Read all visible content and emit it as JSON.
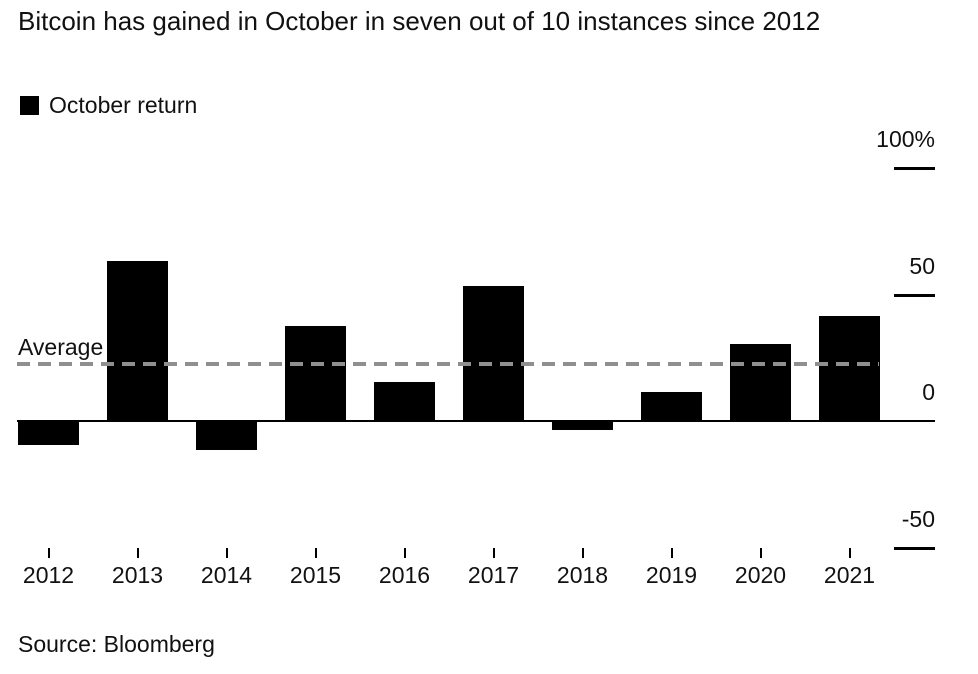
{
  "title": "Bitcoin has gained in October in seven out of 10 instances since 2012",
  "legend": {
    "label": "October return",
    "swatch_color": "#000000"
  },
  "annotations": {
    "average_label": "Average"
  },
  "footer": {
    "source": "Source: Bloomberg"
  },
  "colors": {
    "bar": "#000000",
    "text": "#111111",
    "axis_line": "#000000",
    "dash_over_bar": "#8a8a8a",
    "background": "#ffffff"
  },
  "chart_data": {
    "type": "bar",
    "title": "Bitcoin has gained in October in seven out of 10 instances since 2012",
    "categories": [
      "2012",
      "2013",
      "2014",
      "2015",
      "2016",
      "2017",
      "2018",
      "2019",
      "2020",
      "2021"
    ],
    "series": [
      {
        "name": "October return",
        "values": [
          -10,
          63,
          -12,
          37,
          15,
          53,
          -4,
          11,
          30,
          41
        ]
      }
    ],
    "unit": "%",
    "xlabel": "",
    "ylabel": "",
    "y_ticks": [
      {
        "value": 100,
        "label": "100%"
      },
      {
        "value": 50,
        "label": "50"
      },
      {
        "value": 0,
        "label": "0"
      },
      {
        "value": -50,
        "label": "-50"
      }
    ],
    "ylim": [
      -60,
      110
    ],
    "average_line": {
      "value": 23,
      "label": "Average"
    },
    "grid": "off",
    "legend_position": "top-left",
    "bar_color": "#000000",
    "source": "Source: Bloomberg"
  }
}
